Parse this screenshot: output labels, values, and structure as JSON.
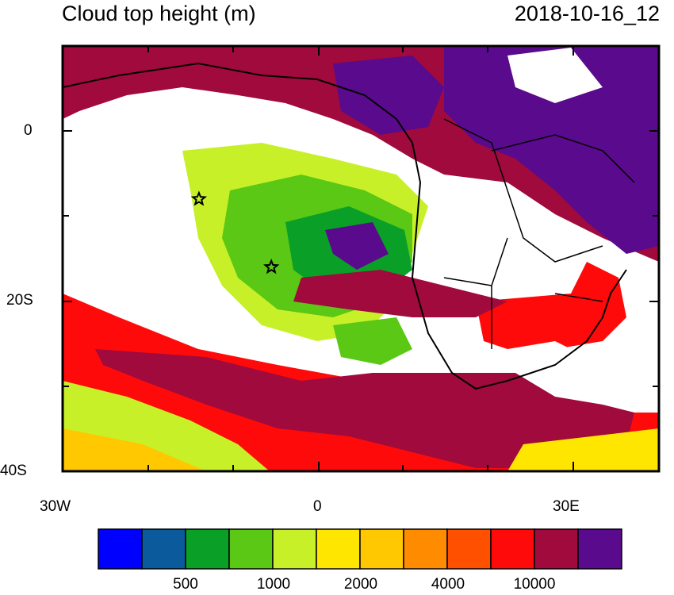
{
  "header": {
    "title": "Cloud top height (m)",
    "timestamp": "2018-10-16_12"
  },
  "axes": {
    "y_ticks": [
      "0",
      "20S",
      "40S"
    ],
    "x_ticks": [
      "30W",
      "0",
      "30E"
    ]
  },
  "colorbar": {
    "colors": [
      "#0000ff",
      "#0a5a9c",
      "#0aa028",
      "#5ac814",
      "#c8f028",
      "#ffe600",
      "#ffc800",
      "#ff8c00",
      "#ff5000",
      "#ff0a0a",
      "#a00a3c",
      "#5a0a8c"
    ],
    "labels": [
      "500",
      "1000",
      "2000",
      "4000",
      "10000"
    ]
  },
  "markers": [
    {
      "name": "star-marker",
      "lon": -14,
      "lat": -8
    },
    {
      "name": "star-marker",
      "lon": -5.5,
      "lat": -16
    }
  ]
}
